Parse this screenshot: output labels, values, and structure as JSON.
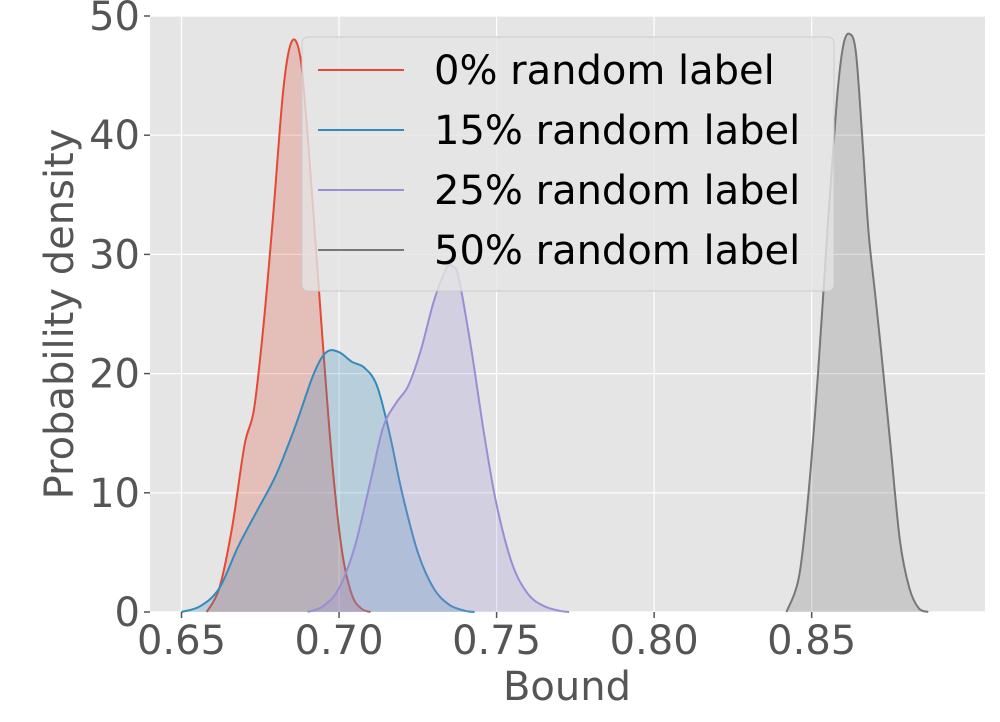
{
  "chart_data": {
    "type": "area",
    "title": "",
    "xlabel": "Bound",
    "ylabel": "Probability density",
    "xlim": [
      0.64,
      0.905
    ],
    "ylim": [
      0,
      50
    ],
    "xticks": [
      0.65,
      0.7,
      0.75,
      0.8,
      0.85
    ],
    "xtick_labels": [
      "0.65",
      "0.70",
      "0.75",
      "0.80",
      "0.85"
    ],
    "yticks": [
      0,
      10,
      20,
      30,
      40,
      50
    ],
    "ytick_labels": [
      "0",
      "10",
      "20",
      "30",
      "40",
      "50"
    ],
    "grid": true,
    "style": "ggplot",
    "legend_position": "top-center",
    "series": [
      {
        "name": "0% random label",
        "color": "#E24A33",
        "x": [
          0.658,
          0.662,
          0.666,
          0.67,
          0.673,
          0.676,
          0.679,
          0.682,
          0.684,
          0.686,
          0.688,
          0.69,
          0.692,
          0.695,
          0.698,
          0.701,
          0.704,
          0.707,
          0.71
        ],
        "y": [
          0.0,
          2.0,
          7.0,
          14.0,
          17.0,
          24.0,
          33.0,
          43.0,
          47.0,
          48.0,
          46.0,
          40.0,
          33.0,
          22.0,
          12.0,
          5.0,
          1.5,
          0.3,
          0.0
        ]
      },
      {
        "name": "15% random label",
        "color": "#348ABD",
        "x": [
          0.65,
          0.656,
          0.662,
          0.668,
          0.674,
          0.68,
          0.686,
          0.692,
          0.696,
          0.7,
          0.704,
          0.708,
          0.712,
          0.716,
          0.72,
          0.725,
          0.73,
          0.735,
          0.74,
          0.743
        ],
        "y": [
          0.0,
          0.5,
          2.0,
          5.5,
          8.5,
          11.5,
          15.5,
          20.0,
          21.8,
          21.8,
          21.0,
          20.5,
          19.0,
          15.0,
          10.0,
          5.0,
          2.0,
          0.6,
          0.1,
          0.0
        ]
      },
      {
        "name": "25% random label",
        "color": "#988ED5",
        "x": [
          0.69,
          0.695,
          0.7,
          0.705,
          0.71,
          0.714,
          0.718,
          0.722,
          0.726,
          0.73,
          0.734,
          0.736,
          0.738,
          0.742,
          0.746,
          0.75,
          0.755,
          0.76,
          0.765,
          0.77,
          0.773
        ],
        "y": [
          0.0,
          0.5,
          2.0,
          5.5,
          11.0,
          15.5,
          17.5,
          19.0,
          22.0,
          26.0,
          28.8,
          29.0,
          28.0,
          22.0,
          15.0,
          9.0,
          4.0,
          1.5,
          0.5,
          0.1,
          0.0
        ]
      },
      {
        "name": "50% random label",
        "color": "#777777",
        "x": [
          0.842,
          0.846,
          0.849,
          0.852,
          0.855,
          0.858,
          0.86,
          0.862,
          0.864,
          0.866,
          0.868,
          0.87,
          0.872,
          0.875,
          0.878,
          0.881,
          0.884,
          0.887
        ],
        "y": [
          0.0,
          3.0,
          10.0,
          20.0,
          32.0,
          43.0,
          47.5,
          48.5,
          47.0,
          40.0,
          32.0,
          27.0,
          22.0,
          14.0,
          6.0,
          2.0,
          0.3,
          0.0
        ]
      }
    ]
  }
}
